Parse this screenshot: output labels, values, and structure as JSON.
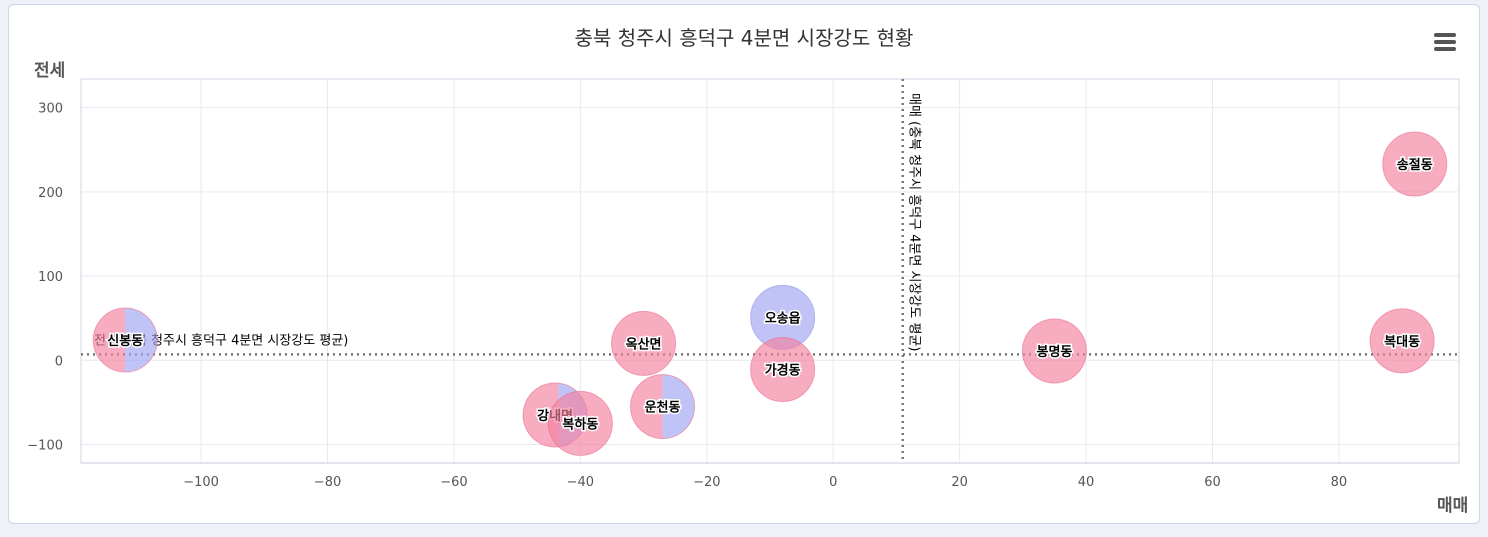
{
  "chart_data": {
    "type": "bubble",
    "title": "충북 청주시 흥덕구 4분면 시장강도 현황",
    "xlabel": "매매",
    "ylabel": "전세",
    "xlim": [
      -119,
      99
    ],
    "ylim": [
      -122,
      334
    ],
    "xticks": [
      -100,
      -80,
      -60,
      -40,
      -20,
      0,
      20,
      40,
      60,
      80
    ],
    "yticks": [
      -100,
      0,
      100,
      200,
      300
    ],
    "grid": true,
    "reference_lines": {
      "x": {
        "value": 11,
        "label": "매매 (충북 청주시 흥덕구 4분면 시장강도 평균)"
      },
      "y": {
        "value": 7,
        "label": "전세(충북 청주시 흥덕구 4분면 시장강도 평균)"
      }
    },
    "colors": {
      "sell": "#f4809e",
      "jeonse": "#9fa3f2"
    },
    "points": [
      {
        "name": "신봉동",
        "x": -112,
        "y": 24,
        "sell_share": 0.5
      },
      {
        "name": "강내면",
        "x": -44,
        "y": -65,
        "sell_share": 0.55
      },
      {
        "name": "복하동",
        "x": -40,
        "y": -75,
        "sell_share": 1
      },
      {
        "name": "옥산면",
        "x": -30,
        "y": 20,
        "sell_share": 1
      },
      {
        "name": "운천동",
        "x": -27,
        "y": -55,
        "sell_share": 0.5
      },
      {
        "name": "오송읍",
        "x": -8,
        "y": 51,
        "sell_share": 0
      },
      {
        "name": "가경동",
        "x": -8,
        "y": -11,
        "sell_share": 1
      },
      {
        "name": "봉명동",
        "x": 35,
        "y": 11,
        "sell_share": 1
      },
      {
        "name": "복대동",
        "x": 90,
        "y": 23,
        "sell_share": 1
      },
      {
        "name": "송절동",
        "x": 92,
        "y": 233,
        "sell_share": 1
      }
    ]
  }
}
